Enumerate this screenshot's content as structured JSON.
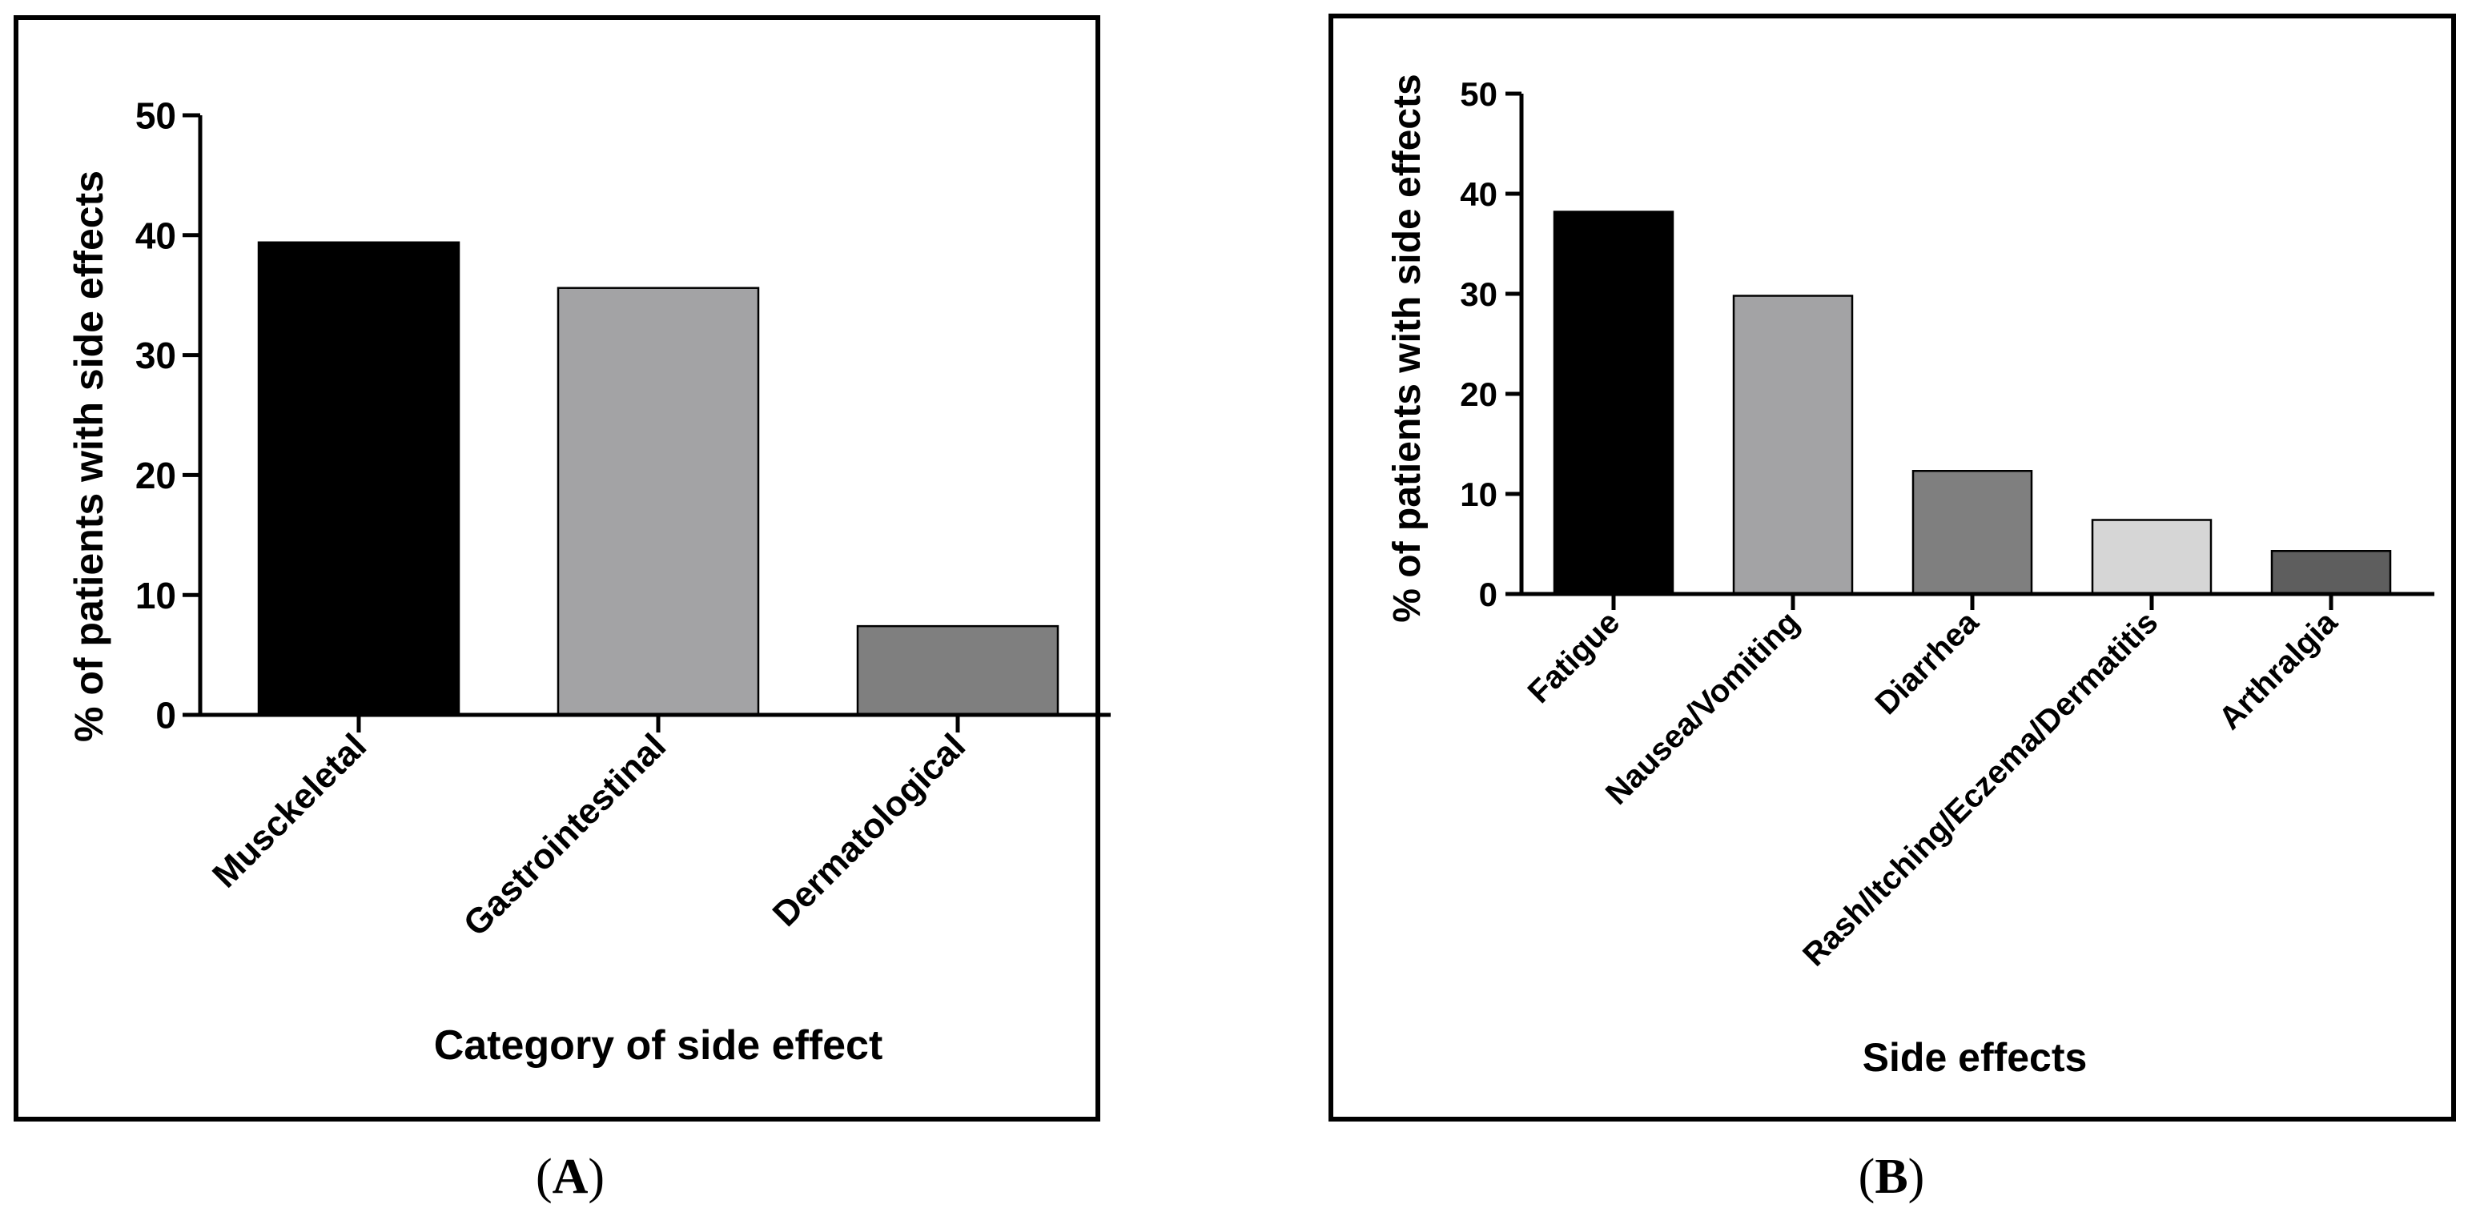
{
  "chart_data": [
    {
      "panel": "A",
      "type": "bar",
      "title": "",
      "xlabel": "Category of side effect",
      "ylabel": "% of patients with side effects",
      "ylim": [
        0,
        50
      ],
      "yticks": [
        0,
        10,
        20,
        30,
        40,
        50
      ],
      "categories": [
        "Musckeletal",
        "Gastrointestinal",
        "Dermatological"
      ],
      "values": [
        39.4,
        35.6,
        7.4
      ],
      "colors": [
        "#000000",
        "#a3a3a5",
        "#7f7f7f"
      ],
      "grid": false,
      "panel_label": {
        "open": "(",
        "letter": "A",
        "close": ")"
      }
    },
    {
      "panel": "B",
      "type": "bar",
      "title": "",
      "xlabel": "Side effects",
      "ylabel": "% of patients with side effects",
      "ylim": [
        0,
        50
      ],
      "yticks": [
        0,
        10,
        20,
        30,
        40,
        50
      ],
      "categories": [
        "Fatigue",
        "Nausea/Vomiting",
        "Diarrhea",
        "Rash/Itching/Eczema/Dermatitis",
        "Arthralgia"
      ],
      "values": [
        38.2,
        29.8,
        12.3,
        7.4,
        4.3
      ],
      "colors": [
        "#000000",
        "#a3a3a5",
        "#7f7f7f",
        "#d6d6d6",
        "#5e5e5e"
      ],
      "grid": false,
      "panel_label": {
        "open": "(",
        "letter": "B",
        "close": ")"
      }
    }
  ]
}
